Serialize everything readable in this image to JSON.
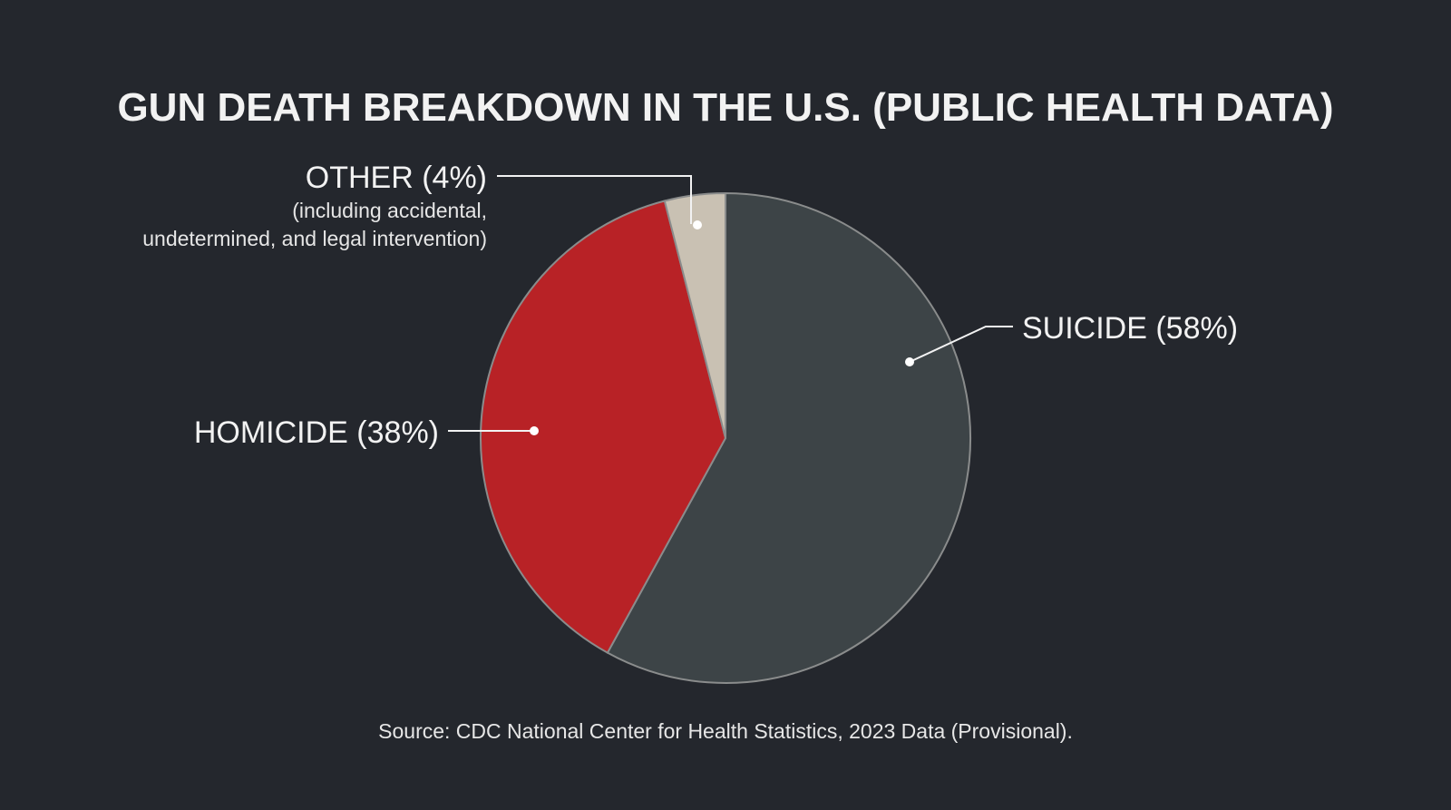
{
  "chart_data": {
    "type": "pie",
    "title": "GUN DEATH BREAKDOWN IN THE U.S. (PUBLIC HEALTH DATA)",
    "slices": [
      {
        "label": "SUICIDE (58%)",
        "value": 58,
        "color": "#3d4447"
      },
      {
        "label": "HOMICIDE (38%)",
        "value": 38,
        "color": "#b82226"
      },
      {
        "label": "OTHER (4%)",
        "value": 4,
        "color": "#c9c1b3",
        "note": [
          "(including accidental,",
          "undetermined, and legal intervention)"
        ]
      }
    ],
    "source": "Source: CDC National Center for Health Statistics, 2023 Data (Provisional).",
    "background": "#24272d"
  }
}
